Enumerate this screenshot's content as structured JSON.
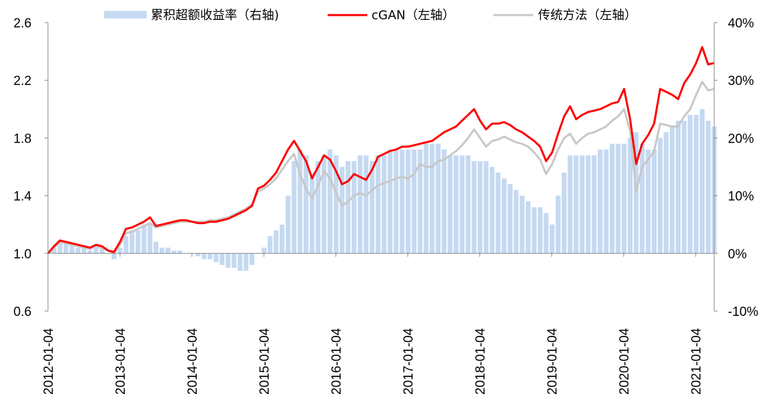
{
  "chart_data": {
    "type": "bar+line",
    "title": "",
    "legend_position": "top",
    "grid": false,
    "left_axis": {
      "ylim": [
        0.6,
        2.6
      ],
      "ticks": [
        "0.6",
        "1.0",
        "1.4",
        "1.8",
        "2.2",
        "2.6"
      ],
      "tick_values": [
        0.6,
        1.0,
        1.4,
        1.8,
        2.2,
        2.6
      ]
    },
    "right_axis": {
      "ylim": [
        -10,
        40
      ],
      "ticks": [
        "-10%",
        "0%",
        "10%",
        "20%",
        "30%",
        "40%"
      ],
      "tick_values": [
        -10,
        0,
        10,
        20,
        30,
        40
      ]
    },
    "x_ticks": [
      "2012-01-04",
      "2013-01-04",
      "2014-01-04",
      "2015-01-04",
      "2016-01-04",
      "2017-01-04",
      "2018-01-04",
      "2019-01-04",
      "2020-01-04",
      "2021-01-04"
    ],
    "x_start": "2012-01",
    "x_end": "2021-04",
    "series": [
      {
        "name": "累积超额收益率（右轴)",
        "type": "bar",
        "axis": "right",
        "color": "#c5d9f1",
        "values": [
          0,
          1,
          2,
          2,
          1.5,
          1,
          1,
          0.5,
          1,
          1,
          0,
          -1,
          1,
          3,
          4,
          4,
          5,
          5,
          2,
          1,
          1,
          0.5,
          0.5,
          0,
          0,
          -0.5,
          -1,
          -1,
          -1.5,
          -2,
          -2.5,
          -2.5,
          -3,
          -3,
          -2,
          0,
          1,
          3,
          4,
          5,
          10,
          16,
          18,
          17,
          14,
          16,
          17,
          18,
          17,
          15,
          16,
          16,
          17,
          17,
          16,
          17,
          17,
          18,
          18,
          18,
          18,
          18,
          18,
          19,
          19,
          19,
          18,
          17,
          17,
          17,
          17,
          16,
          16,
          16,
          15,
          14,
          13,
          12,
          11,
          10,
          9,
          8,
          8,
          7,
          5,
          10,
          14,
          17,
          17,
          17,
          17,
          17,
          18,
          18,
          19,
          19,
          19,
          20,
          21,
          19,
          18,
          18,
          20,
          21,
          22,
          23,
          23,
          24,
          24,
          25,
          23,
          22
        ]
      },
      {
        "name": "cGAN（左轴）",
        "type": "line",
        "axis": "left",
        "color": "#ff0000",
        "values": [
          1.0,
          1.05,
          1.09,
          1.08,
          1.07,
          1.06,
          1.05,
          1.04,
          1.06,
          1.05,
          1.02,
          1.01,
          1.08,
          1.17,
          1.18,
          1.2,
          1.22,
          1.25,
          1.19,
          1.2,
          1.21,
          1.22,
          1.23,
          1.23,
          1.22,
          1.21,
          1.21,
          1.22,
          1.22,
          1.23,
          1.24,
          1.26,
          1.28,
          1.3,
          1.33,
          1.45,
          1.47,
          1.51,
          1.56,
          1.64,
          1.72,
          1.78,
          1.71,
          1.64,
          1.52,
          1.6,
          1.68,
          1.65,
          1.57,
          1.48,
          1.5,
          1.55,
          1.53,
          1.51,
          1.58,
          1.67,
          1.69,
          1.71,
          1.72,
          1.74,
          1.74,
          1.75,
          1.76,
          1.77,
          1.78,
          1.81,
          1.84,
          1.86,
          1.88,
          1.92,
          1.96,
          2.0,
          1.92,
          1.86,
          1.9,
          1.9,
          1.91,
          1.89,
          1.86,
          1.84,
          1.81,
          1.78,
          1.74,
          1.64,
          1.7,
          1.83,
          1.95,
          2.02,
          1.93,
          1.96,
          1.98,
          1.99,
          2.0,
          2.02,
          2.04,
          2.05,
          2.14,
          1.93,
          1.62,
          1.76,
          1.82,
          1.9,
          2.14,
          2.12,
          2.1,
          2.07,
          2.18,
          2.24,
          2.32,
          2.43,
          2.31,
          2.32
        ]
      },
      {
        "name": "传统方法（左轴）",
        "type": "line",
        "axis": "left",
        "color": "#c8c8c8",
        "values": [
          1.0,
          1.04,
          1.08,
          1.07,
          1.06,
          1.05,
          1.04,
          1.03,
          1.05,
          1.04,
          1.02,
          1.0,
          1.06,
          1.14,
          1.15,
          1.17,
          1.19,
          1.21,
          1.18,
          1.19,
          1.2,
          1.21,
          1.22,
          1.22,
          1.22,
          1.22,
          1.22,
          1.23,
          1.23,
          1.24,
          1.25,
          1.27,
          1.29,
          1.31,
          1.34,
          1.43,
          1.45,
          1.48,
          1.52,
          1.58,
          1.64,
          1.69,
          1.55,
          1.45,
          1.38,
          1.47,
          1.57,
          1.52,
          1.42,
          1.33,
          1.36,
          1.4,
          1.42,
          1.4,
          1.44,
          1.47,
          1.49,
          1.5,
          1.52,
          1.53,
          1.52,
          1.55,
          1.62,
          1.6,
          1.6,
          1.64,
          1.65,
          1.68,
          1.71,
          1.75,
          1.8,
          1.86,
          1.8,
          1.74,
          1.78,
          1.79,
          1.81,
          1.79,
          1.77,
          1.76,
          1.74,
          1.7,
          1.65,
          1.55,
          1.62,
          1.72,
          1.8,
          1.83,
          1.76,
          1.8,
          1.83,
          1.84,
          1.86,
          1.88,
          1.92,
          1.95,
          2.0,
          1.85,
          1.43,
          1.6,
          1.65,
          1.71,
          1.9,
          1.89,
          1.88,
          1.88,
          1.95,
          2.0,
          2.1,
          2.19,
          2.13,
          2.14
        ]
      }
    ]
  }
}
